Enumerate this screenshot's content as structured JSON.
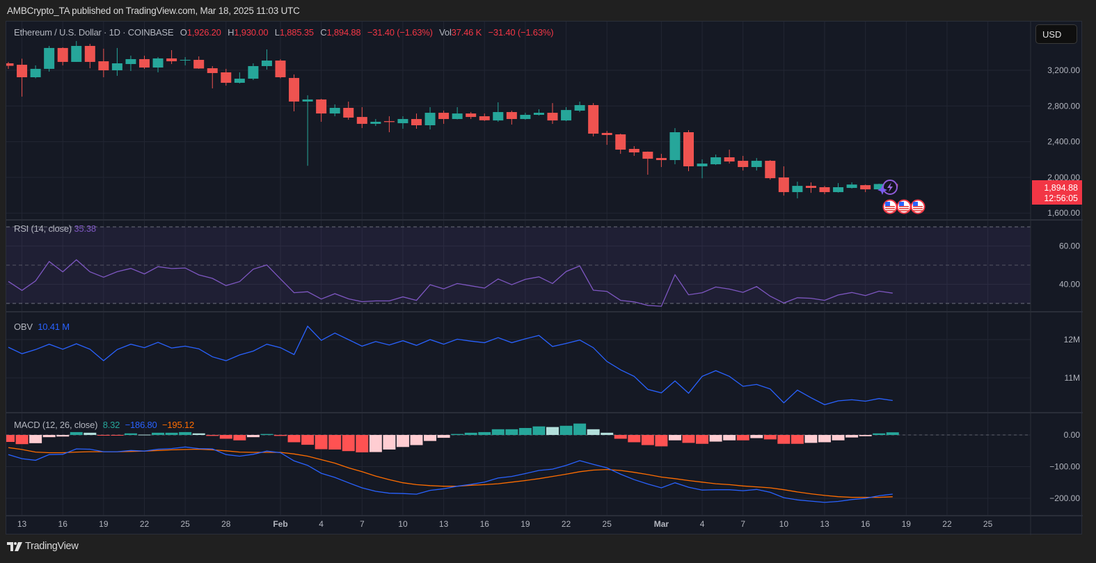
{
  "publisher_line": "AMBCrypto_TA published on TradingView.com, Mar 18, 2025 11:03 UTC",
  "legend": {
    "symbol": "Ethereum / U.S. Dollar · 1D · COINBASE",
    "o_label": "O",
    "o": "1,926.20",
    "h_label": "H",
    "h": "1,930.00",
    "l_label": "L",
    "l": "1,885.35",
    "c_label": "C",
    "c": "1,894.88",
    "change": "−31.40 (−1.63%)",
    "vol_label": "Vol",
    "vol": "37.46 K",
    "vol_change": "−31.40 (−1.63%)"
  },
  "currency_button": "USD",
  "last_price": {
    "price": "1,894.88",
    "countdown": "12:56:05"
  },
  "indicators": {
    "rsi": {
      "label": "RSI (14, close)",
      "value": "35.38"
    },
    "obv": {
      "label": "OBV",
      "value": "10.41 M"
    },
    "macd": {
      "label": "MACD (12, 26, close)",
      "hist": "8.32",
      "macd": "−186.80",
      "signal": "−195.12"
    }
  },
  "brand": "TradingView",
  "icons": [
    "lightning-circle-icon",
    "sparkle-icon",
    "us-flag-event-icon"
  ],
  "colors": {
    "up": "#26a69a",
    "down": "#ef5350",
    "last_price_bg": "#f23645",
    "rsi_line": "#7e57c2",
    "obv_line": "#2962ff",
    "macd_line": "#2962ff",
    "signal_line": "#ff6d00",
    "hist_pos_grow": "#26a69a",
    "hist_pos_fall": "#b2dfdb",
    "hist_neg_grow": "#ff5252",
    "hist_neg_fall": "#ffcdd2"
  },
  "chart_data": [
    {
      "type": "candlestick",
      "title": "Ethereum / U.S. Dollar · 1D · COINBASE",
      "dates": [
        "2025-01-12",
        "2025-01-13",
        "2025-01-14",
        "2025-01-15",
        "2025-01-16",
        "2025-01-17",
        "2025-01-18",
        "2025-01-19",
        "2025-01-20",
        "2025-01-21",
        "2025-01-22",
        "2025-01-23",
        "2025-01-24",
        "2025-01-25",
        "2025-01-26",
        "2025-01-27",
        "2025-01-28",
        "2025-01-29",
        "2025-01-30",
        "2025-01-31",
        "2025-02-01",
        "2025-02-02",
        "2025-02-03",
        "2025-02-04",
        "2025-02-05",
        "2025-02-06",
        "2025-02-07",
        "2025-02-08",
        "2025-02-09",
        "2025-02-10",
        "2025-02-11",
        "2025-02-12",
        "2025-02-13",
        "2025-02-14",
        "2025-02-15",
        "2025-02-16",
        "2025-02-17",
        "2025-02-18",
        "2025-02-19",
        "2025-02-20",
        "2025-02-21",
        "2025-02-22",
        "2025-02-23",
        "2025-02-24",
        "2025-02-25",
        "2025-02-26",
        "2025-02-27",
        "2025-02-28",
        "2025-03-01",
        "2025-03-02",
        "2025-03-03",
        "2025-03-04",
        "2025-03-05",
        "2025-03-06",
        "2025-03-07",
        "2025-03-08",
        "2025-03-09",
        "2025-03-10",
        "2025-03-11",
        "2025-03-12",
        "2025-03-13",
        "2025-03-14",
        "2025-03-15",
        "2025-03-16",
        "2025-03-17",
        "2025-03-18"
      ],
      "ohlc": [
        [
          3278,
          3294,
          3216,
          3250
        ],
        [
          3262,
          3330,
          2905,
          3122
        ],
        [
          3122,
          3255,
          3110,
          3216
        ],
        [
          3216,
          3473,
          3185,
          3450
        ],
        [
          3450,
          3457,
          3255,
          3294
        ],
        [
          3294,
          3528,
          3294,
          3473
        ],
        [
          3473,
          3496,
          3223,
          3294
        ],
        [
          3301,
          3442,
          3122,
          3200
        ],
        [
          3200,
          3450,
          3138,
          3278
        ],
        [
          3270,
          3364,
          3192,
          3325
        ],
        [
          3325,
          3364,
          3216,
          3231
        ],
        [
          3231,
          3348,
          3177,
          3333
        ],
        [
          3333,
          3426,
          3270,
          3301
        ],
        [
          3309,
          3348,
          3255,
          3317
        ],
        [
          3317,
          3356,
          3216,
          3220
        ],
        [
          3223,
          3247,
          2997,
          3169
        ],
        [
          3177,
          3216,
          3028,
          3060
        ],
        [
          3060,
          3177,
          3052,
          3106
        ],
        [
          3106,
          3278,
          3091,
          3247
        ],
        [
          3247,
          3434,
          3208,
          3309
        ],
        [
          3309,
          3325,
          3110,
          3122
        ],
        [
          3114,
          3153,
          2740,
          2850
        ],
        [
          2850,
          2920,
          2130,
          2873
        ],
        [
          2873,
          2880,
          2623,
          2716
        ],
        [
          2716,
          2818,
          2685,
          2779
        ],
        [
          2779,
          2849,
          2646,
          2670
        ],
        [
          2677,
          2787,
          2553,
          2600
        ],
        [
          2600,
          2654,
          2576,
          2623
        ],
        [
          2630,
          2685,
          2506,
          2620
        ],
        [
          2607,
          2685,
          2545,
          2654
        ],
        [
          2654,
          2716,
          2545,
          2584
        ],
        [
          2584,
          2787,
          2537,
          2724
        ],
        [
          2724,
          2748,
          2600,
          2654
        ],
        [
          2654,
          2787,
          2650,
          2716
        ],
        [
          2716,
          2732,
          2654,
          2677
        ],
        [
          2685,
          2716,
          2632,
          2640
        ],
        [
          2638,
          2841,
          2623,
          2732
        ],
        [
          2732,
          2748,
          2592,
          2654
        ],
        [
          2654,
          2724,
          2646,
          2701
        ],
        [
          2701,
          2763,
          2693,
          2724
        ],
        [
          2724,
          2833,
          2600,
          2638
        ],
        [
          2638,
          2787,
          2630,
          2755
        ],
        [
          2748,
          2849,
          2732,
          2810
        ],
        [
          2810,
          2833,
          2459,
          2490
        ],
        [
          2498,
          2521,
          2365,
          2475
        ],
        [
          2482,
          2490,
          2264,
          2311
        ],
        [
          2319,
          2350,
          2241,
          2280
        ],
        [
          2288,
          2290,
          2030,
          2209
        ],
        [
          2217,
          2264,
          2116,
          2194
        ],
        [
          2194,
          2552,
          2147,
          2506
        ],
        [
          2506,
          2529,
          2069,
          2124
        ],
        [
          2124,
          2202,
          1990,
          2155
        ],
        [
          2147,
          2256,
          2139,
          2225
        ],
        [
          2225,
          2311,
          2155,
          2178
        ],
        [
          2186,
          2241,
          2077,
          2116
        ],
        [
          2116,
          2217,
          2077,
          2186
        ],
        [
          2186,
          2194,
          1975,
          1991
        ],
        [
          1999,
          2124,
          1796,
          1835
        ],
        [
          1835,
          1952,
          1765,
          1905
        ],
        [
          1905,
          1944,
          1827,
          1882
        ],
        [
          1890,
          1905,
          1812,
          1835
        ],
        [
          1835,
          1936,
          1830,
          1890
        ],
        [
          1882,
          1944,
          1875,
          1920
        ],
        [
          1913,
          1920,
          1835,
          1866
        ],
        [
          1866,
          1930,
          1860,
          1926
        ],
        [
          1926.2,
          1930.0,
          1885.35,
          1894.88
        ]
      ],
      "y_ticks": [
        3200,
        2800,
        2400,
        2000,
        1600
      ],
      "y_tick_labels": [
        "3,200.00",
        "2,800.00",
        "2,400.00",
        "2,000.00",
        "1,600.00"
      ],
      "ylim": [
        1540,
        3560
      ],
      "x_ticks": [
        {
          "date": "2025-01-13",
          "label": "13"
        },
        {
          "date": "2025-01-16",
          "label": "16"
        },
        {
          "date": "2025-01-19",
          "label": "19"
        },
        {
          "date": "2025-01-22",
          "label": "22"
        },
        {
          "date": "2025-01-25",
          "label": "25"
        },
        {
          "date": "2025-01-28",
          "label": "28"
        },
        {
          "date": "2025-02-01",
          "label": "Feb",
          "bold": true
        },
        {
          "date": "2025-02-04",
          "label": "4"
        },
        {
          "date": "2025-02-07",
          "label": "7"
        },
        {
          "date": "2025-02-10",
          "label": "10"
        },
        {
          "date": "2025-02-13",
          "label": "13"
        },
        {
          "date": "2025-02-16",
          "label": "16"
        },
        {
          "date": "2025-02-19",
          "label": "19"
        },
        {
          "date": "2025-02-22",
          "label": "22"
        },
        {
          "date": "2025-02-25",
          "label": "25"
        },
        {
          "date": "2025-03-01",
          "label": "Mar",
          "bold": true
        },
        {
          "date": "2025-03-04",
          "label": "4"
        },
        {
          "date": "2025-03-07",
          "label": "7"
        },
        {
          "date": "2025-03-10",
          "label": "10"
        },
        {
          "date": "2025-03-13",
          "label": "13"
        },
        {
          "date": "2025-03-16",
          "label": "16"
        },
        {
          "date": "2025-03-19",
          "label": "19"
        },
        {
          "date": "2025-03-22",
          "label": "22"
        },
        {
          "date": "2025-03-25",
          "label": "25"
        }
      ],
      "grid": true
    },
    {
      "type": "line",
      "name": "RSI (14, close)",
      "values": [
        41.5,
        36.8,
        41.8,
        51.9,
        46.5,
        52.8,
        46.5,
        43.7,
        46.6,
        48.3,
        45.4,
        49.2,
        48.2,
        48.5,
        44.9,
        43.1,
        39.3,
        41.4,
        47.9,
        50.1,
        42.8,
        35.6,
        36.1,
        32.3,
        35.1,
        32.4,
        30.9,
        31.3,
        31.3,
        33.4,
        31.6,
        39.8,
        37.6,
        40.4,
        39.2,
        38.0,
        42.8,
        39.8,
        42.6,
        43.9,
        40.4,
        46.7,
        49.6,
        36.9,
        36.3,
        31.6,
        30.8,
        29.0,
        28.5,
        45.0,
        34.5,
        35.6,
        38.6,
        37.5,
        35.8,
        38.8,
        33.8,
        30.2,
        33.0,
        32.7,
        31.6,
        34.4,
        35.7,
        34.1,
        36.4,
        35.38
      ],
      "bands": [
        70,
        50,
        30
      ],
      "y_ticks": [
        60,
        40
      ],
      "y_tick_labels": [
        "60.00",
        "40.00"
      ]
    },
    {
      "type": "line",
      "name": "OBV",
      "unit": "M",
      "values": [
        11.8,
        11.63,
        11.74,
        11.88,
        11.75,
        11.89,
        11.75,
        11.45,
        11.74,
        11.88,
        11.79,
        11.93,
        11.78,
        11.83,
        11.76,
        11.55,
        11.45,
        11.6,
        11.7,
        11.88,
        11.79,
        11.61,
        12.35,
        11.98,
        12.17,
        12.0,
        11.83,
        11.95,
        11.86,
        11.97,
        11.85,
        12.0,
        11.88,
        12.01,
        11.96,
        11.92,
        12.05,
        11.92,
        12.02,
        12.11,
        11.82,
        11.9,
        11.99,
        11.79,
        11.43,
        11.21,
        11.04,
        10.7,
        10.61,
        10.92,
        10.6,
        11.04,
        11.19,
        11.04,
        10.78,
        10.83,
        10.71,
        10.35,
        10.68,
        10.48,
        10.3,
        10.4,
        10.43,
        10.39,
        10.46,
        10.41
      ],
      "y_ticks": [
        12,
        11
      ],
      "y_tick_labels": [
        "12M",
        "11M"
      ]
    },
    {
      "type": "bar+line",
      "name": "MACD (12, 26, close)",
      "histogram": [
        -22,
        -29,
        -26,
        -7,
        -5,
        9,
        7,
        -1.5,
        -2,
        5,
        1,
        7,
        7,
        9,
        5,
        -3,
        -12,
        -17,
        -7,
        3,
        -3,
        -23,
        -31,
        -45,
        -46,
        -51,
        -55,
        -54,
        -46,
        -38,
        -32,
        -19,
        -9,
        3,
        7,
        9,
        18,
        18,
        22,
        27,
        25,
        29,
        36,
        18,
        7,
        -12,
        -23,
        -32,
        -36,
        -17,
        -25,
        -28,
        -21,
        -17,
        -17,
        -10,
        -14,
        -28,
        -28,
        -25,
        -23,
        -17,
        -8,
        -4,
        5,
        8.32
      ],
      "macd": [
        -62,
        -75,
        -80,
        -62,
        -61,
        -44,
        -45,
        -53,
        -53,
        -49,
        -51,
        -45,
        -43,
        -38,
        -43,
        -44,
        -62,
        -67,
        -61,
        -51,
        -56,
        -82,
        -96,
        -121,
        -134,
        -151,
        -167,
        -178,
        -184,
        -185,
        -187,
        -175,
        -170,
        -162,
        -156,
        -149,
        -136,
        -131,
        -122,
        -112,
        -108,
        -96,
        -81,
        -93,
        -104,
        -124,
        -141,
        -155,
        -167,
        -151,
        -165,
        -174,
        -173,
        -173,
        -176,
        -172,
        -181,
        -198,
        -205,
        -209,
        -213,
        -210,
        -204,
        -200,
        -192,
        -186.8
      ],
      "signal": [
        -40,
        -46,
        -54,
        -56,
        -56,
        -54,
        -53,
        -53,
        -53,
        -52,
        -51,
        -49,
        -47,
        -46,
        -45,
        -47,
        -50,
        -54,
        -55,
        -55,
        -55,
        -60,
        -67,
        -78,
        -89,
        -104,
        -116,
        -130,
        -141,
        -151,
        -157,
        -160,
        -162,
        -162,
        -159,
        -157,
        -154,
        -149,
        -144,
        -138,
        -131,
        -124,
        -116,
        -111,
        -109,
        -112,
        -118,
        -125,
        -133,
        -138,
        -144,
        -149,
        -154,
        -157,
        -161,
        -164,
        -167,
        -173,
        -180,
        -186,
        -191,
        -195,
        -197,
        -197,
        -197,
        -195.12
      ],
      "y_ticks": [
        0,
        -100,
        -200
      ],
      "y_tick_labels": [
        "0.00",
        "−100.00",
        "−200.00"
      ]
    }
  ]
}
